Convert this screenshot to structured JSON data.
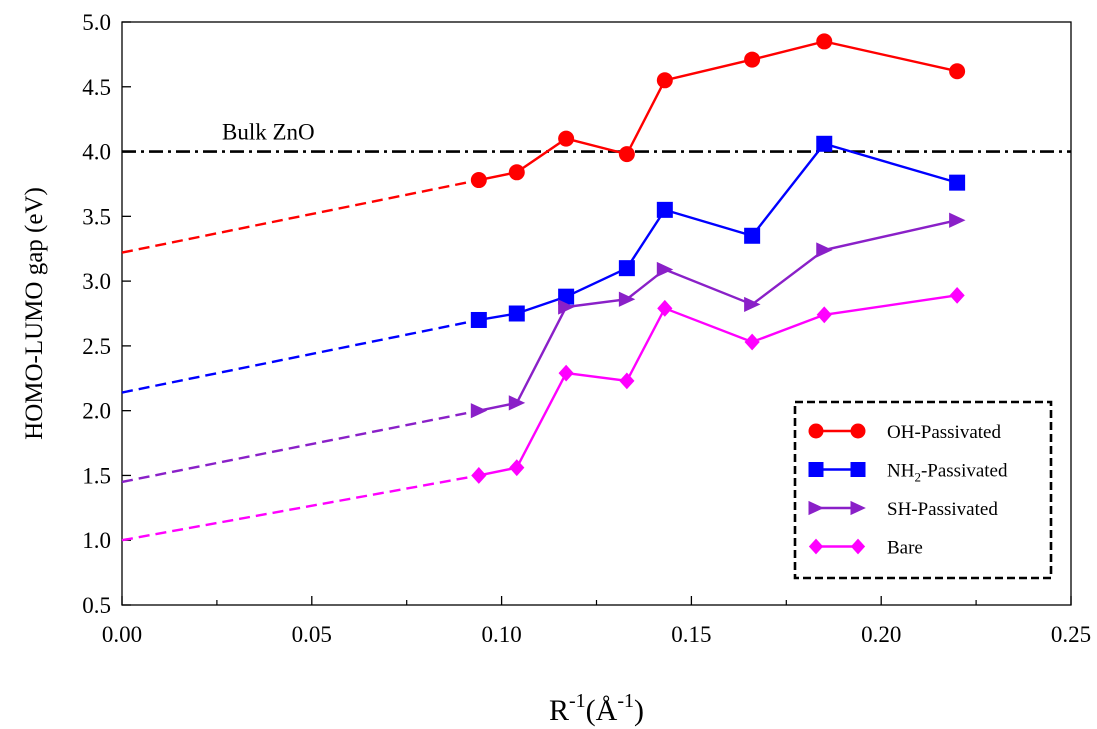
{
  "chart_data": {
    "type": "line",
    "title": "",
    "xlabel": {
      "base": "R",
      "sup1": "-1",
      "open": "(Å",
      "sup2": "-1",
      "close": ")"
    },
    "ylabel": "HOMO-LUMO gap (eV)",
    "xlim": [
      0.0,
      0.25
    ],
    "ylim": [
      0.5,
      5.0
    ],
    "x_ticks": [
      0.0,
      0.05,
      0.1,
      0.15,
      0.2,
      0.25
    ],
    "x_tick_labels": [
      "0.00",
      "0.05",
      "0.10",
      "0.15",
      "0.20",
      "0.25"
    ],
    "y_ticks": [
      0.5,
      1.0,
      1.5,
      2.0,
      2.5,
      3.0,
      3.5,
      4.0,
      4.5,
      5.0
    ],
    "y_tick_labels": [
      "0.5",
      "1.0",
      "1.5",
      "2.0",
      "2.5",
      "3.0",
      "3.5",
      "4.0",
      "4.5",
      "5.0"
    ],
    "x": [
      0.094,
      0.104,
      0.117,
      0.133,
      0.143,
      0.166,
      0.185,
      0.22
    ],
    "series": [
      {
        "name": "OH-Passivated",
        "key": "oh",
        "color": "#ff0000",
        "marker": "circle",
        "values": [
          3.78,
          3.84,
          4.1,
          3.98,
          4.55,
          4.71,
          4.85,
          4.62
        ],
        "extrapolation": [
          [
            0.0,
            3.22
          ],
          [
            0.094,
            3.78
          ]
        ]
      },
      {
        "name": "NH2-Passivated",
        "key": "nh2",
        "color": "#0000ff",
        "marker": "square",
        "values": [
          2.7,
          2.75,
          2.88,
          3.1,
          3.55,
          3.35,
          4.06,
          3.76
        ],
        "extrapolation": [
          [
            0.0,
            2.14
          ],
          [
            0.094,
            2.7
          ]
        ]
      },
      {
        "name": "SH-Passivated",
        "key": "sh",
        "color": "#8a20c8",
        "marker": "triangle-right",
        "values": [
          2.0,
          2.06,
          2.8,
          2.86,
          3.09,
          2.82,
          3.24,
          3.47
        ],
        "extrapolation": [
          [
            0.0,
            1.45
          ],
          [
            0.094,
            2.0
          ]
        ]
      },
      {
        "name": "Bare",
        "key": "bare",
        "color": "#ff00ff",
        "marker": "diamond",
        "values": [
          1.5,
          1.56,
          2.29,
          2.23,
          2.79,
          2.53,
          2.74,
          2.89
        ],
        "extrapolation": [
          [
            0.0,
            1.0
          ],
          [
            0.094,
            1.5
          ]
        ]
      }
    ],
    "reference_line": {
      "label": "Bulk ZnO",
      "y": 4.0,
      "style": "dash-dot",
      "color": "#000000"
    },
    "legend": {
      "placement": "bottom-right",
      "border": "dashed",
      "entries": [
        {
          "key": "oh",
          "text": "OH-Passivated"
        },
        {
          "key": "nh2",
          "text": "NH",
          "sub": "2",
          "rest": "-Passivated"
        },
        {
          "key": "sh",
          "text": "SH-Passivated"
        },
        {
          "key": "bare",
          "text": "Bare"
        }
      ]
    },
    "grid": false
  }
}
